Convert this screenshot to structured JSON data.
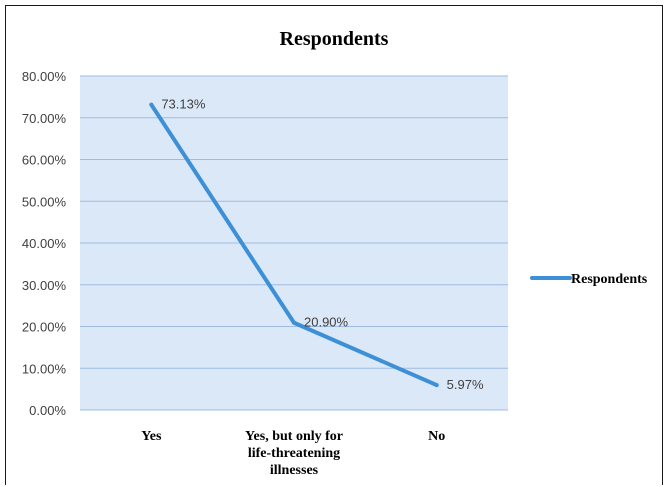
{
  "chart_data": {
    "type": "line",
    "title": "Respondents",
    "xlabel": "",
    "ylabel": "",
    "categories": [
      "Yes",
      "Yes, but only for life-threatening illnesses",
      "No"
    ],
    "category_lines": [
      [
        "Yes"
      ],
      [
        "Yes, but only for",
        "life-threatening",
        "illnesses"
      ],
      [
        "No"
      ]
    ],
    "series": [
      {
        "name": "Respondents",
        "values": [
          73.13,
          20.9,
          5.97
        ],
        "labels": [
          "73.13%",
          "20.90%",
          "5.97%"
        ],
        "color": "#3d8fd6"
      }
    ],
    "ylim": [
      0,
      80
    ],
    "yticks": [
      "0.00%",
      "10.00%",
      "20.00%",
      "30.00%",
      "40.00%",
      "50.00%",
      "60.00%",
      "70.00%",
      "80.00%"
    ],
    "grid": true,
    "legend": "right",
    "plot_background": "#dbe8f7",
    "grid_color": "#9fbce3"
  }
}
